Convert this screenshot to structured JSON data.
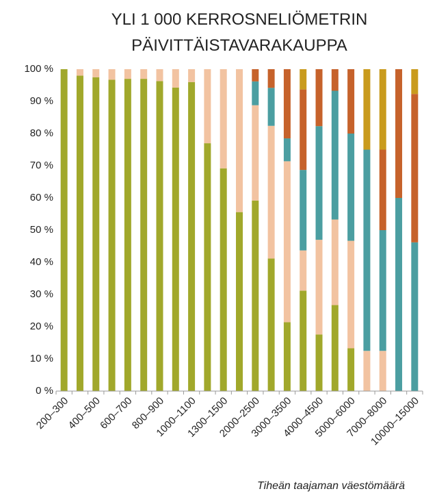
{
  "chart_data": {
    "type": "stacked_bar",
    "title_lines": [
      "YLI 1 000 KERROSNELIÖMETRIN",
      "PÄIVITTÄISTAVARAKAUPPA"
    ],
    "x_label": "Tiheän taajaman väestömäärä",
    "categories": [
      "200–300",
      null,
      "400–500",
      null,
      "600–700",
      null,
      "800–900",
      null,
      "1000–1100",
      null,
      "1300–1500",
      null,
      "2000–2500",
      null,
      "3000–3500",
      null,
      "4000–4500",
      null,
      "5000–6000",
      null,
      "7000–8000",
      null,
      "10000–15000"
    ],
    "series": [
      {
        "color": "#a1a82b",
        "values": [
          100,
          98,
          97.5,
          96.7,
          97,
          97,
          96.3,
          94.3,
          96,
          77,
          69.2,
          55.6,
          59.2,
          41.2,
          21.4,
          31.2,
          17.6,
          26.7,
          13.3,
          0,
          0,
          0,
          0
        ]
      },
      {
        "color": "#f2c3a1",
        "values": [
          0,
          2,
          2.5,
          3.3,
          3,
          3,
          3.7,
          5.7,
          4,
          23,
          30.8,
          44.4,
          29.6,
          41.2,
          50,
          12.5,
          29.4,
          26.6,
          33.4,
          12.5,
          12.5,
          0,
          0
        ]
      },
      {
        "color": "#4b9ea1",
        "values": [
          0,
          0,
          0,
          0,
          0,
          0,
          0,
          0,
          0,
          0,
          0,
          0,
          7.4,
          11.8,
          7.1,
          25,
          35.3,
          40,
          33.3,
          62.5,
          37.5,
          60,
          46.2
        ]
      },
      {
        "color": "#c6622b",
        "values": [
          0,
          0,
          0,
          0,
          0,
          0,
          0,
          0,
          0,
          0,
          0,
          0,
          3.8,
          5.8,
          21.5,
          25,
          17.7,
          6.7,
          20,
          0,
          25,
          40,
          46.1
        ]
      },
      {
        "color": "#c99b1d",
        "values": [
          0,
          0,
          0,
          0,
          0,
          0,
          0,
          0,
          0,
          0,
          0,
          0,
          0,
          0,
          0,
          6.3,
          0,
          0,
          0,
          25,
          25,
          0,
          7.7
        ]
      }
    ],
    "ylim": [
      0,
      100
    ],
    "yticks": [
      {
        "value": 0,
        "label": "0 %"
      },
      {
        "value": 10,
        "label": "10 %"
      },
      {
        "value": 20,
        "label": "20 %"
      },
      {
        "value": 30,
        "label": "30 %"
      },
      {
        "value": 40,
        "label": "40 %"
      },
      {
        "value": 50,
        "label": "50 %"
      },
      {
        "value": 60,
        "label": "60 %"
      },
      {
        "value": 70,
        "label": "70 %"
      },
      {
        "value": 80,
        "label": "80 %"
      },
      {
        "value": 90,
        "label": "90 %"
      },
      {
        "value": 100,
        "label": "100 %"
      }
    ]
  }
}
